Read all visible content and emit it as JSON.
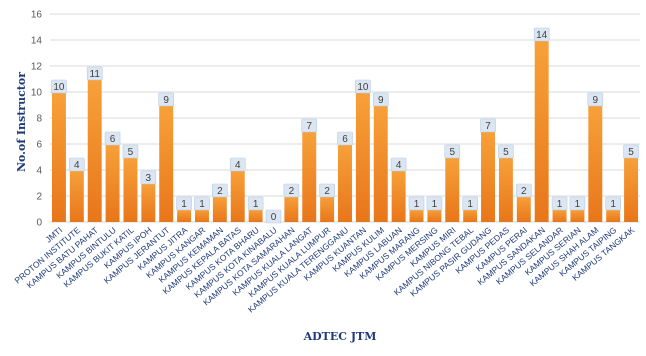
{
  "chart_data": {
    "type": "bar",
    "title": "",
    "xlabel": "ADTEC JTM",
    "ylabel": "No.of Instructor",
    "ylim": [
      0,
      16
    ],
    "yticks": [
      0,
      2,
      4,
      6,
      8,
      10,
      12,
      14,
      16
    ],
    "grid": true,
    "legend": "none",
    "categories": [
      "JMTI",
      "PROTON INSTITUTE",
      "KAMPUS BATU PAHAT",
      "KAMPUS BINTULU",
      "KAMPUS BUKIT KATIL",
      "KAMPUS IPOH",
      "KAMPUS JERANTUT",
      "KAMPUS JITRA",
      "KAMPUS KANGAR",
      "KAMPUS KEMAMAN",
      "KAMPUS KEPALA BATAS",
      "KAMPUS KOTA BHARU",
      "KAMPUS KOTA KINABALU",
      "KAMPUS KOTA SAMARAHAN",
      "KAMPUS KUALA LANGAT",
      "KAMPUS KUALA LUMPUR",
      "KAMPUS KUALA TERENGGANU",
      "KAMPUS KUANTAN",
      "KAMPUS KULIM",
      "KAMPUS LABUAN",
      "KAMPUS MARANG",
      "KAMPUS MERSING",
      "KAMPUS MIRI",
      "KAMPUS NIBONG TEBAL",
      "KAMPUS PASIR GUDANG",
      "KAMPUS PEDAS",
      "KAMPUS PERAI",
      "KAMPUS SANDAKAN",
      "KAMPUS SELANDAR",
      "KAMPUS SERIAN",
      "KAMPUS SHAH ALAM",
      "KAMPUS TAIPING",
      "KAMPUS TANGKAK"
    ],
    "values": [
      10,
      4,
      11,
      6,
      5,
      3,
      9,
      1,
      1,
      2,
      4,
      1,
      0,
      2,
      7,
      2,
      6,
      10,
      9,
      4,
      1,
      1,
      5,
      1,
      7,
      5,
      2,
      14,
      1,
      1,
      9,
      1,
      5
    ],
    "colors": {
      "bar_top": "#f7a13a",
      "bar_bottom": "#e8761a",
      "label_box": "#dce6f2",
      "label_box_edge": "#b8cce4",
      "grid": "#d9d9d9"
    }
  }
}
